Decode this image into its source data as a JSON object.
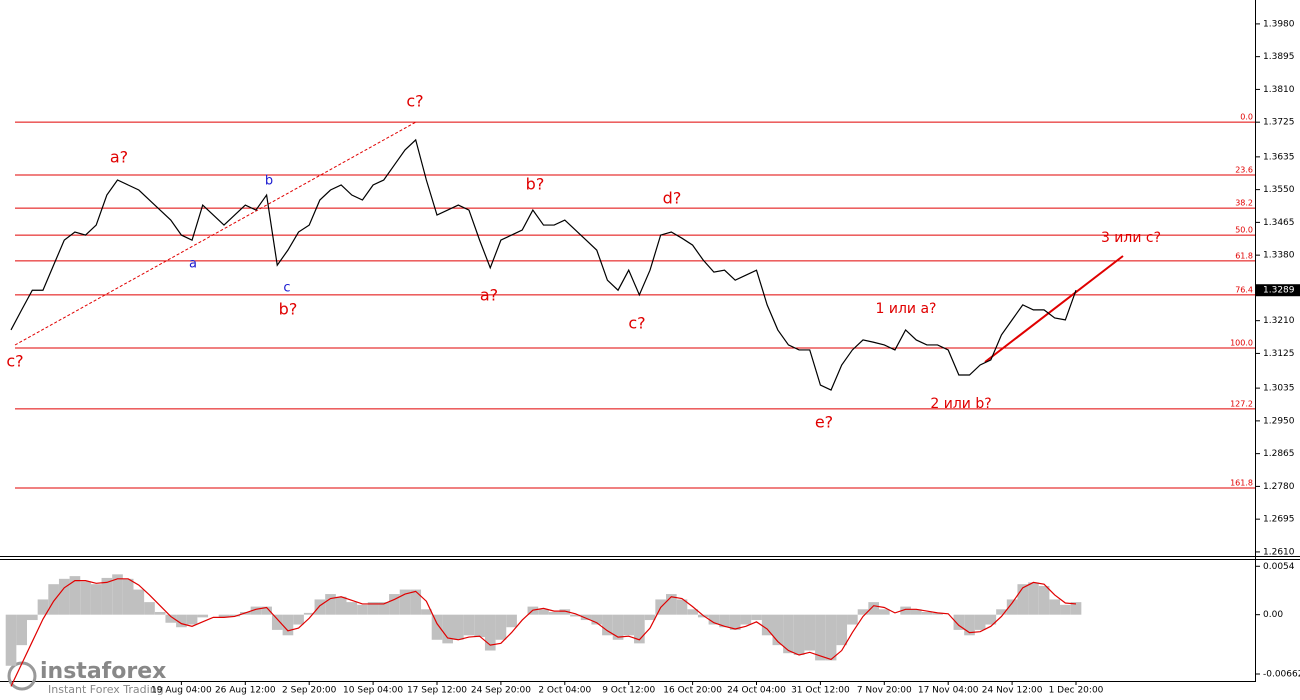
{
  "chart_data": [
    {
      "type": "line",
      "categories": [
        null,
        null,
        null,
        null,
        null,
        null,
        null,
        null,
        null,
        null,
        null,
        null,
        null,
        null,
        null,
        null,
        "19 Aug 04:00",
        null,
        null,
        null,
        null,
        null,
        "26 Aug 12:00",
        null,
        null,
        null,
        null,
        null,
        "2 Sep 20:00",
        null,
        null,
        null,
        null,
        null,
        "10 Sep 04:00",
        null,
        null,
        null,
        null,
        null,
        "17 Sep 12:00",
        null,
        null,
        null,
        null,
        null,
        "24 Sep 20:00",
        null,
        null,
        null,
        null,
        null,
        "2 Oct 04:00",
        null,
        null,
        null,
        null,
        null,
        "9 Oct 12:00",
        null,
        null,
        null,
        null,
        null,
        "16 Oct 20:00",
        null,
        null,
        null,
        null,
        null,
        "24 Oct 04:00",
        null,
        null,
        null,
        null,
        null,
        "31 Oct 12:00",
        null,
        null,
        null,
        null,
        null,
        "7 Nov 20:00",
        null,
        null,
        null,
        null,
        null,
        "17 Nov 04:00",
        null,
        null,
        null,
        null,
        null,
        "24 Nov 12:00",
        null,
        null,
        null,
        null,
        null,
        "1 Dec 20:00"
      ],
      "series": [
        {
          "color": "#000000",
          "values": [
            1.3186,
            1.3238,
            1.3289,
            1.3289,
            1.3354,
            1.3419,
            1.344,
            1.3432,
            1.3458,
            1.3536,
            1.3575,
            1.3562,
            1.3549,
            1.3523,
            1.3497,
            1.3471,
            1.3432,
            1.3419,
            1.351,
            1.3484,
            1.3458,
            1.3484,
            1.351,
            1.3497,
            1.3536,
            1.3354,
            1.3393,
            1.344,
            1.3458,
            1.3523,
            1.3549,
            1.3562,
            1.3536,
            1.3523,
            1.3562,
            1.3575,
            1.3614,
            1.3653,
            1.3679,
            1.3575,
            1.3484,
            1.3497,
            1.351,
            1.3497,
            1.3419,
            1.3347,
            1.3419,
            1.3432,
            1.3445,
            1.3497,
            1.3458,
            1.3458,
            1.3471,
            1.3445,
            1.3419,
            1.3393,
            1.3315,
            1.3289,
            1.3341,
            1.3277,
            1.3341,
            1.3432,
            1.344,
            1.3424,
            1.3406,
            1.3367,
            1.3336,
            1.3341,
            1.3315,
            1.3328,
            1.3341,
            1.3251,
            1.3186,
            1.3147,
            1.3134,
            1.3134,
            1.3043,
            1.303,
            1.3095,
            1.3134,
            1.316,
            1.3154,
            1.3147,
            1.3134,
            1.3186,
            1.316,
            1.3147,
            1.3147,
            1.3134,
            1.3069,
            1.3069,
            1.3095,
            1.3108,
            1.3173,
            1.3212,
            1.3251,
            1.3238,
            1.3238,
            1.3217,
            1.3212,
            1.3289
          ]
        }
      ],
      "ylim": [
        1.2602,
        1.4042
      ],
      "yticks": [
        {
          "value": 1.398,
          "label": "1.3980"
        },
        {
          "value": 1.3895,
          "label": "1.3895"
        },
        {
          "value": 1.381,
          "label": "1.3810"
        },
        {
          "value": 1.3725,
          "label": "1.3725"
        },
        {
          "value": 1.3635,
          "label": "1.3635"
        },
        {
          "value": 1.355,
          "label": "1.3550"
        },
        {
          "value": 1.3465,
          "label": "1.3465"
        },
        {
          "value": 1.338,
          "label": "1.3380"
        },
        {
          "value": 1.321,
          "label": "1.3210"
        },
        {
          "value": 1.3125,
          "label": "1.3125"
        },
        {
          "value": 1.3035,
          "label": "1.3035"
        },
        {
          "value": 1.295,
          "label": "1.2950"
        },
        {
          "value": 1.2865,
          "label": "1.2865"
        },
        {
          "value": 1.278,
          "label": "1.2780"
        },
        {
          "value": 1.2695,
          "label": "1.2695"
        },
        {
          "value": 1.261,
          "label": "1.2610"
        }
      ],
      "last_price": 1.3289,
      "fib_color": "#e00000",
      "fib_levels": [
        {
          "label": "0.0",
          "price": 1.3725
        },
        {
          "label": "23.6",
          "price": 1.3588
        },
        {
          "label": "38.2",
          "price": 1.3502
        },
        {
          "label": "50.0",
          "price": 1.3432
        },
        {
          "label": "61.8",
          "price": 1.3365
        },
        {
          "label": "76.4",
          "price": 1.3277
        },
        {
          "label": "100.0",
          "price": 1.3139
        },
        {
          "label": "127.2",
          "price": 1.2981
        },
        {
          "label": "161.8",
          "price": 1.2776
        }
      ],
      "annotations": [
        "c?",
        "a?",
        "b?",
        "c?",
        "a?",
        "b?",
        "c?",
        "d?",
        "e?",
        "1 или a?",
        "2 или b?",
        "3 или c?"
      ],
      "sub_annotations": [
        "a",
        "b",
        "c"
      ]
    },
    {
      "type": "macd",
      "series": [
        {
          "color": "#c0c0c0",
          "values": [
            -0.0057,
            -0.0034,
            -0.0006,
            0.0017,
            0.0034,
            0.004,
            0.0043,
            0.0037,
            0.0034,
            0.0041,
            0.0045,
            0.004,
            0.0028,
            0.0014,
            0.0003,
            -0.0009,
            -0.0014,
            -0.0011,
            -0.0003,
            0,
            -0.0003,
            -0.0002,
            0.0003,
            0.0009,
            0.0009,
            -0.0017,
            -0.0023,
            -0.0011,
            0.0002,
            0.0017,
            0.0023,
            0.002,
            0.0014,
            0.0011,
            0.0014,
            0.0014,
            0.0023,
            0.0028,
            0.0028,
            0.0006,
            -0.0028,
            -0.0032,
            -0.0028,
            -0.0023,
            -0.0025,
            -0.004,
            -0.0028,
            -0.0014,
            0,
            0.0009,
            0.0006,
            0.0003,
            0.0006,
            -0.0002,
            -0.0006,
            -0.0011,
            -0.0023,
            -0.0028,
            -0.0023,
            -0.0032,
            -0.0006,
            0.0017,
            0.0023,
            0.0017,
            0.0006,
            -0.0003,
            -0.0011,
            -0.0014,
            -0.0017,
            -0.0011,
            -0.0006,
            -0.0023,
            -0.0034,
            -0.0043,
            -0.0045,
            -0.004,
            -0.0051,
            -0.0051,
            -0.0034,
            -0.0011,
            0.0006,
            0.0014,
            0.0006,
            0,
            0.0009,
            0.0006,
            0.0003,
            0.0002,
            0,
            -0.0017,
            -0.0023,
            -0.0017,
            -0.0011,
            0.0006,
            0.0017,
            0.0034,
            0.0036,
            0.0032,
            0.0017,
            0.0011,
            0.0014
          ]
        },
        {
          "color": "#e00000",
          "values": [
            -0.008,
            -0.0055,
            -0.003,
            -0.0005,
            0.0015,
            0.003,
            0.0038,
            0.0038,
            0.0035,
            0.0036,
            0.004,
            0.004,
            0.0033,
            0.0022,
            0.001,
            -0.0002,
            -0.001,
            -0.0013,
            -0.0008,
            -0.0003,
            -0.0003,
            -0.0002,
            0.0002,
            0.0006,
            0.0008,
            -0.0005,
            -0.0018,
            -0.0015,
            -0.0004,
            0.001,
            0.0018,
            0.002,
            0.0016,
            0.0012,
            0.0012,
            0.0012,
            0.0017,
            0.0023,
            0.0026,
            0.0015,
            -0.001,
            -0.0026,
            -0.0028,
            -0.0025,
            -0.0024,
            -0.0034,
            -0.0032,
            -0.002,
            -0.0006,
            0.0005,
            0.0007,
            0.0004,
            0.0004,
            0.0001,
            -0.0004,
            -0.0009,
            -0.0018,
            -0.0025,
            -0.0024,
            -0.0028,
            -0.0015,
            0.0008,
            0.002,
            0.0018,
            0.0009,
            -0.0001,
            -0.0009,
            -0.0013,
            -0.0016,
            -0.0013,
            -0.0008,
            -0.0016,
            -0.003,
            -0.004,
            -0.0045,
            -0.0042,
            -0.0046,
            -0.005,
            -0.004,
            -0.002,
            -0.0002,
            0.001,
            0.0008,
            0.0002,
            0.0006,
            0.0006,
            0.0004,
            0.0002,
            0.0001,
            -0.0012,
            -0.002,
            -0.0019,
            -0.0013,
            -0.0002,
            0.0013,
            0.003,
            0.0036,
            0.0034,
            0.0022,
            0.0013,
            0.0012
          ]
        }
      ],
      "ylim": [
        -0.0074,
        0.0061
      ],
      "yticks": [
        0.0054,
        {
          "value": 0,
          "label": "0.00"
        },
        -0.00662
      ]
    }
  ],
  "watermark": {
    "brand": "instaforex",
    "tagline": "Instant Forex Trading"
  }
}
